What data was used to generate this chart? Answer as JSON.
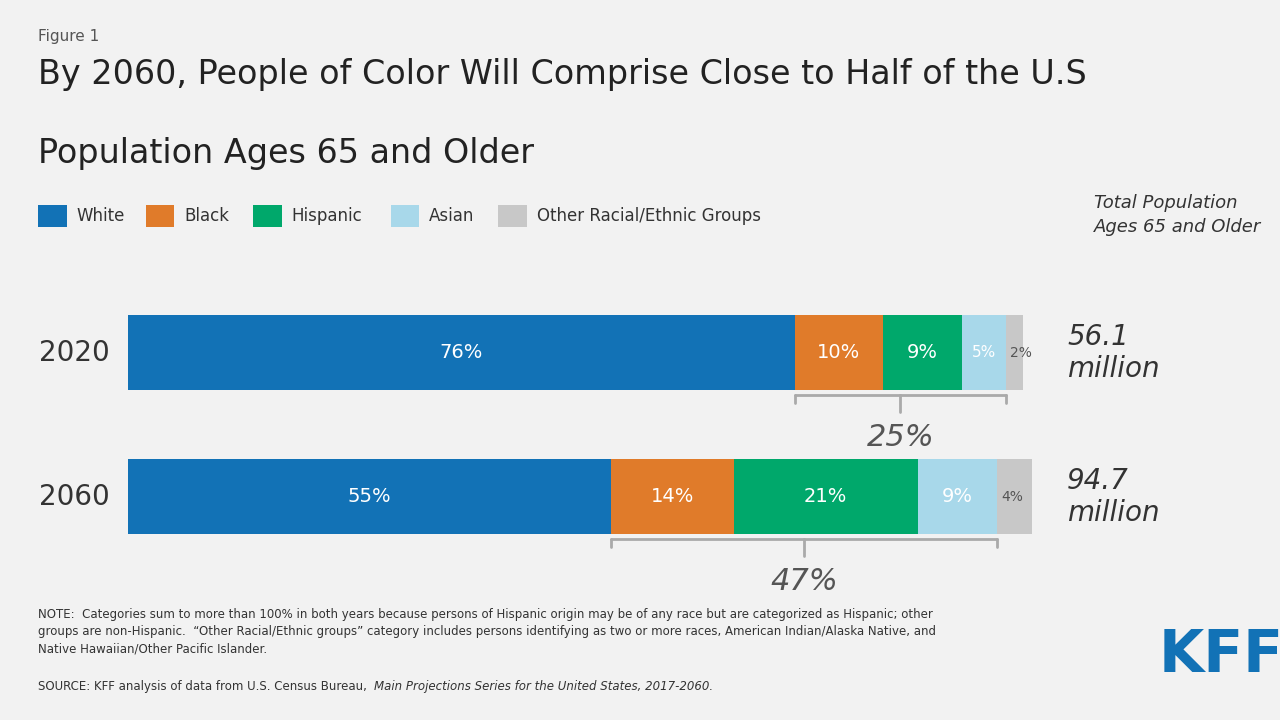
{
  "figure_label": "Figure 1",
  "title_line1": "By 2060, People of Color Will Comprise Close to Half of the U.S",
  "title_line2": "Population Ages 65 and Older",
  "years": [
    "2020",
    "2060"
  ],
  "categories": [
    "White",
    "Black",
    "Hispanic",
    "Asian",
    "Other Racial/Ethnic Groups"
  ],
  "colors": [
    "#1272b6",
    "#e07b2a",
    "#00a86b",
    "#a8d8ea",
    "#c8c8c8"
  ],
  "values_2020": [
    76,
    10,
    9,
    5,
    2
  ],
  "values_2060": [
    55,
    14,
    21,
    9,
    4
  ],
  "total_2020": "56.1\nmillion",
  "total_2060": "94.7\nmillion",
  "poc_pct_2020": "25%",
  "poc_pct_2060": "47%",
  "note_text": "NOTE:  Categories sum to more than 100% in both years because persons of Hispanic origin may be of any race but are categorized as Hispanic; other\ngroups are non-Hispanic.  “Other Racial/Ethnic groups” category includes persons identifying as two or more races, American Indian/Alaska Native, and\nNative Hawaiian/Other Pacific Islander.",
  "source_text_normal": "SOURCE: KFF analysis of data from U.S. Census Bureau, ",
  "source_text_italic": "Main Projections Series for the United States, 2017-2060.",
  "background_color": "#f2f2f2",
  "total_pop_label": "Total Population\nAges 65 and Older",
  "kff_color": "#1272b6",
  "bar_height": 0.52
}
